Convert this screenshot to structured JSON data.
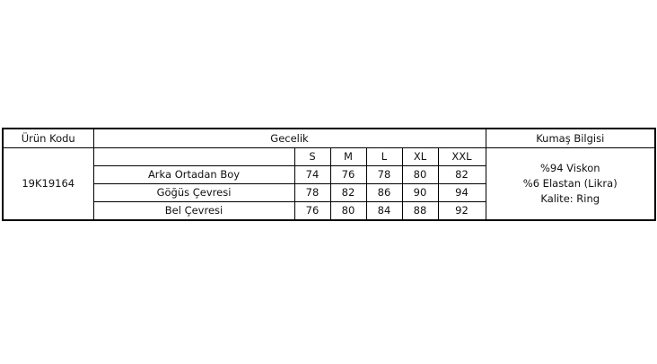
{
  "headers": {
    "product_code": "Ürün Kodu",
    "category": "Gecelik",
    "fabric": "Kumaş Bilgisi"
  },
  "product_code": "19K19164",
  "sizes": [
    "S",
    "M",
    "L",
    "XL",
    "XXL"
  ],
  "rows": [
    {
      "label": "Arka Ortadan Boy",
      "values": [
        "74",
        "76",
        "78",
        "80",
        "82"
      ]
    },
    {
      "label": "Göğüs Çevresi",
      "values": [
        "78",
        "82",
        "86",
        "90",
        "94"
      ]
    },
    {
      "label": "Bel Çevresi",
      "values": [
        "76",
        "80",
        "84",
        "88",
        "92"
      ]
    }
  ],
  "fabric_info": [
    "%94 Viskon",
    "%6 Elastan (Likra)",
    "Kalite: Ring"
  ]
}
